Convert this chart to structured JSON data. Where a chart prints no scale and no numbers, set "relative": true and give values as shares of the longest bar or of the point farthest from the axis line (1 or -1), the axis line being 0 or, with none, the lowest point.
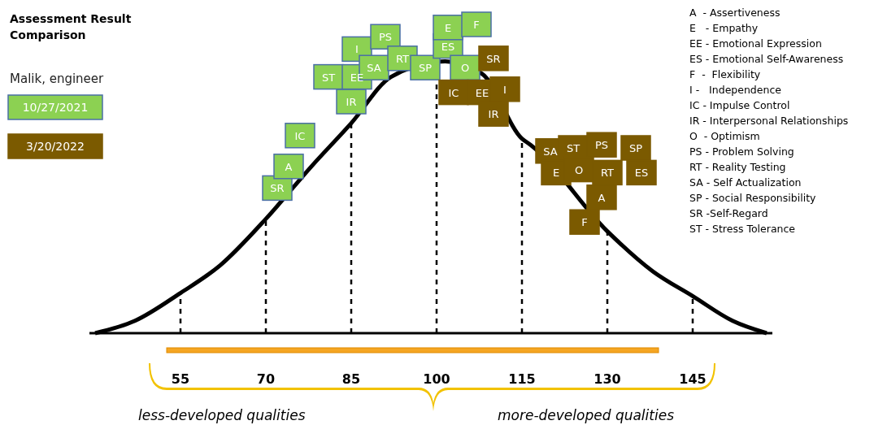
{
  "chart_data": {
    "type": "scatter",
    "title": "Assessment Result Comparison",
    "subtitle": "Malik, engineer",
    "relative": true,
    "xlim": [
      39,
      159
    ],
    "xticks": [
      55,
      70,
      85,
      100,
      115,
      130,
      145
    ],
    "marker": "square",
    "legend": "top left",
    "series": [
      {
        "type": "line",
        "marker": "none",
        "color": "#000000",
        "x": [
          40,
          47,
          55,
          62,
          70,
          78,
          85,
          92,
          101.5,
          108,
          115,
          116.5,
          130,
          138,
          145,
          152,
          158
        ],
        "values": [
          0,
          0.04,
          0.13,
          0.22,
          0.37,
          0.54,
          0.68,
          0.83,
          0.88,
          0.84,
          0.63,
          0.61,
          0.33,
          0.2,
          0.12,
          0.04,
          0
        ]
      },
      {
        "name": "10/27/2021",
        "color": "#8cd152",
        "x": [
          72,
          74,
          76,
          85,
          81,
          86,
          86,
          91,
          89,
          94,
          98,
          102,
          102,
          107,
          105
        ],
        "values": [
          0.47,
          0.54,
          0.64,
          0.75,
          0.83,
          0.83,
          0.92,
          0.96,
          0.86,
          0.89,
          0.86,
          0.93,
          0.99,
          1,
          0.86
        ]
      },
      {
        "name": "3/20/2022",
        "color": "#7b5a00",
        "x": [
          110,
          103,
          108,
          112,
          110,
          120,
          124,
          129,
          135,
          121,
          125,
          130,
          136,
          129,
          126
        ],
        "values": [
          0.89,
          0.78,
          0.78,
          0.79,
          0.71,
          0.59,
          0.6,
          0.61,
          0.6,
          0.52,
          0.53,
          0.52,
          0.52,
          0.44,
          0.36
        ]
      }
    ],
    "ref_lines": [
      {
        "axis": "x",
        "value": 55,
        "line_style": "dashed"
      },
      {
        "axis": "x",
        "value": 70,
        "line_style": "dashed"
      },
      {
        "axis": "x",
        "value": 85,
        "line_style": "dashed"
      },
      {
        "axis": "x",
        "value": 100,
        "line_style": "dashed"
      },
      {
        "axis": "x",
        "value": 115,
        "line_style": "dashed"
      },
      {
        "axis": "x",
        "value": 130,
        "line_style": "dashed"
      },
      {
        "axis": "x",
        "value": 145,
        "line_style": "dashed"
      }
    ],
    "annotations": [
      {
        "text": "SR",
        "x": 72,
        "y": 0.47
      },
      {
        "text": "A",
        "x": 74,
        "y": 0.54
      },
      {
        "text": "IC",
        "x": 76,
        "y": 0.64
      },
      {
        "text": "IR",
        "x": 85,
        "y": 0.75
      },
      {
        "text": "ST",
        "x": 81,
        "y": 0.83
      },
      {
        "text": "EE",
        "x": 86,
        "y": 0.83
      },
      {
        "text": "I",
        "x": 86,
        "y": 0.92
      },
      {
        "text": "PS",
        "x": 91,
        "y": 0.96
      },
      {
        "text": "SA",
        "x": 89,
        "y": 0.86
      },
      {
        "text": "RT",
        "x": 94,
        "y": 0.89
      },
      {
        "text": "SP",
        "x": 98,
        "y": 0.86
      },
      {
        "text": "ES",
        "x": 102,
        "y": 0.93
      },
      {
        "text": "E",
        "x": 102,
        "y": 0.99
      },
      {
        "text": "F",
        "x": 107,
        "y": 1
      },
      {
        "text": "O",
        "x": 105,
        "y": 0.86
      },
      {
        "text": "SR",
        "x": 110,
        "y": 0.89
      },
      {
        "text": "IC",
        "x": 103,
        "y": 0.78
      },
      {
        "text": "EE",
        "x": 108,
        "y": 0.78
      },
      {
        "text": "I",
        "x": 112,
        "y": 0.79
      },
      {
        "text": "IR",
        "x": 110,
        "y": 0.71
      },
      {
        "text": "SA",
        "x": 120,
        "y": 0.59
      },
      {
        "text": "ST",
        "x": 124,
        "y": 0.6
      },
      {
        "text": "PS",
        "x": 129,
        "y": 0.61
      },
      {
        "text": "SP",
        "x": 135,
        "y": 0.6
      },
      {
        "text": "E",
        "x": 121,
        "y": 0.52
      },
      {
        "text": "O",
        "x": 125,
        "y": 0.53
      },
      {
        "text": "RT",
        "x": 130,
        "y": 0.52
      },
      {
        "text": "ES",
        "x": 136,
        "y": 0.52
      },
      {
        "text": "A",
        "x": 129,
        "y": 0.44
      },
      {
        "text": "F",
        "x": 126,
        "y": 0.36
      },
      "A  - Assertiveness",
      "E   - Empathy",
      "EE - Emotional Expression",
      "ES - Emotional Self-Awareness",
      "F  -  Flexibility",
      "I -   Independence",
      "IC - Impulse Control",
      "IR - Interpersonal Relationships",
      "O  - Optimism",
      "PS - Problem Solving",
      "RT - Reality Testing",
      "SA - Self Actualization",
      "SP - Social Responsibility",
      "SR -Self-Regard",
      "ST - Stress Tolerance",
      "less-developed qualities",
      "more-developed qualities"
    ]
  }
}
